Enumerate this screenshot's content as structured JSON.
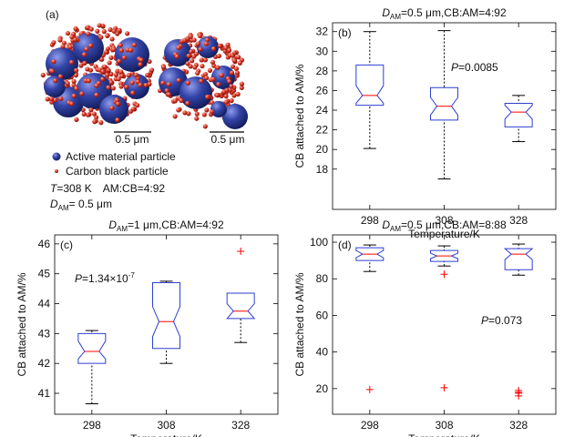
{
  "panel_a": {
    "label": "(a)",
    "scale_bars": [
      "0.5 μm",
      "0.5 μm"
    ],
    "legend": [
      "Active material particle",
      "Carbon black particle"
    ],
    "conditions_parts": [
      "T",
      "=308 K",
      "AM:CB=4:92"
    ],
    "size_parts": [
      "D",
      "AM",
      "= 0.5 μm"
    ]
  },
  "chart_data": [
    {
      "type": "box",
      "panel_label": "(b)",
      "title_parts": [
        "D",
        "AM",
        "=0.5 μm,CB:AM=4:92"
      ],
      "xlabel": "Temperature/K",
      "ylabel": "CB attached to AM/%",
      "categories": [
        "298",
        "308",
        "328"
      ],
      "ylim": [
        13.9,
        32.9
      ],
      "yticks": [
        18,
        20,
        22,
        24,
        26,
        28,
        30,
        32
      ],
      "box_color": "#2f3fd0",
      "median_color": "#ff0000",
      "outlier_color": "#ff0000",
      "boxes": [
        {
          "min": 20.1,
          "q1": 24.5,
          "notch_low": 24.7,
          "median": 25.5,
          "notch_high": 26.5,
          "q3": 28.6,
          "max": 32,
          "outliers": []
        },
        {
          "min": 17,
          "q1": 23,
          "notch_low": 23.5,
          "median": 24.4,
          "notch_high": 25.3,
          "q3": 26.3,
          "max": 32.1,
          "outliers": []
        },
        {
          "min": 20.8,
          "q1": 22.3,
          "notch_low": 23.1,
          "median": 23.8,
          "notch_high": 24.5,
          "q3": 24.7,
          "max": 25.5,
          "outliers": []
        }
      ],
      "annotation_parts": [
        "P",
        "=0.0085"
      ]
    },
    {
      "type": "box",
      "panel_label": "(c)",
      "title_parts": [
        "D",
        "AM",
        "=1 μm,CB:AM=4:92"
      ],
      "xlabel": "Temperature/K",
      "ylabel": "CB attached to AM/%",
      "categories": [
        "298",
        "308",
        "328"
      ],
      "ylim": [
        40.3,
        46.3
      ],
      "yticks": [
        41,
        42,
        43,
        44,
        45,
        46
      ],
      "box_color": "#2f3fd0",
      "median_color": "#ff0000",
      "outlier_color": "#ff0000",
      "boxes": [
        {
          "min": 40.65,
          "q1": 42.0,
          "notch_low": 42.15,
          "median": 42.4,
          "notch_high": 42.75,
          "q3": 43.0,
          "max": 43.1,
          "outliers": []
        },
        {
          "min": 42.0,
          "q1": 42.5,
          "notch_low": 42.9,
          "median": 43.4,
          "notch_high": 43.9,
          "q3": 44.7,
          "max": 44.75,
          "outliers": []
        },
        {
          "min": 42.7,
          "q1": 43.5,
          "notch_low": 43.5,
          "median": 43.75,
          "notch_high": 44.0,
          "q3": 44.35,
          "max": 44.35,
          "outliers": [
            45.75
          ]
        }
      ],
      "annotation_parts": [
        "P",
        "=1.34×10",
        "-7"
      ]
    },
    {
      "type": "box",
      "panel_label": "(d)",
      "title_parts": [
        "D",
        "AM",
        "=0.5 μm,CB:AM=8:88"
      ],
      "xlabel": "Temperature/K",
      "ylabel": "CB attached to AM/%",
      "categories": [
        "298",
        "308",
        "328"
      ],
      "ylim": [
        6,
        104
      ],
      "yticks": [
        20,
        40,
        60,
        80,
        100
      ],
      "box_color": "#2f3fd0",
      "median_color": "#ff0000",
      "outlier_color": "#ff0000",
      "boxes": [
        {
          "min": 84,
          "q1": 90,
          "notch_low": 91.5,
          "median": 93.5,
          "notch_high": 95.5,
          "q3": 97,
          "max": 98.5,
          "outliers": [
            19.5
          ]
        },
        {
          "min": 87,
          "q1": 89.5,
          "notch_low": 91,
          "median": 92.5,
          "notch_high": 94,
          "q3": 95.5,
          "max": 98,
          "outliers": [
            82.5,
            20.5
          ]
        },
        {
          "min": 82,
          "q1": 85,
          "notch_low": 90.5,
          "median": 93.5,
          "notch_high": 96.5,
          "q3": 96.5,
          "max": 99,
          "outliers": [
            19,
            18,
            17.5,
            16
          ]
        }
      ],
      "annotation_parts": [
        "P",
        "=0.073"
      ]
    }
  ]
}
